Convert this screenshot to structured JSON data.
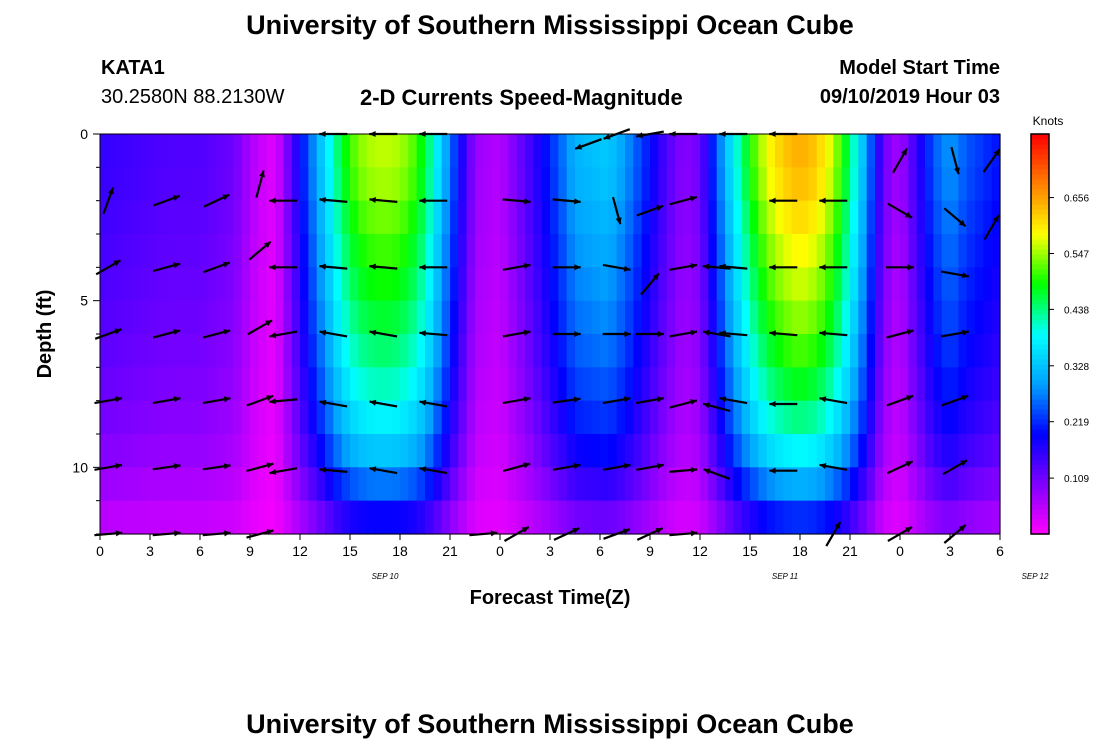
{
  "header": {
    "title": "University of Southern Mississippi Ocean Cube",
    "station": "KATA1",
    "coords": "30.2580N 88.2130W",
    "subtitle": "2-D Currents Speed-Magnitude",
    "model_label": "Model Start Time",
    "model_time": "09/10/2019 Hour 03"
  },
  "footer": {
    "title": "University of Southern Mississippi Ocean Cube"
  },
  "chart_data": {
    "type": "heatmap",
    "xlabel": "Forecast Time(Z)",
    "ylabel": "Depth (ft)",
    "x_ticks": [
      "0",
      "3",
      "6",
      "9",
      "12",
      "15",
      "18",
      "21",
      "0",
      "3",
      "6",
      "9",
      "12",
      "15",
      "18",
      "21",
      "0",
      "3",
      "6"
    ],
    "date_labels": [
      {
        "label": "SEP 10",
        "tick": 6
      },
      {
        "label": "SEP 11",
        "tick": 14
      },
      {
        "label": "SEP 12",
        "tick": 19
      }
    ],
    "x_range_hours": [
      0,
      54
    ],
    "y_ticks": [
      0,
      5,
      10
    ],
    "ylim": [
      0,
      12
    ],
    "colorbar": {
      "unit": "Knots",
      "ticks": [
        "0.109",
        "0.219",
        "0.328",
        "0.438",
        "0.547",
        "0.656"
      ],
      "range": [
        0.0,
        0.78
      ],
      "colors": [
        "#ff00ff",
        "#8000ff",
        "#0000ff",
        "#00a0ff",
        "#00ffff",
        "#00ff00",
        "#ffff00",
        "#ff8000",
        "#ff0000"
      ]
    },
    "speed_profile": {
      "hours": [
        0,
        2,
        4,
        6,
        8,
        9.5,
        10.5,
        11.5,
        12.5,
        13.5,
        14.5,
        15.5,
        16.5,
        17.5,
        18.5,
        19.5,
        20.5,
        21.5,
        22.5,
        24,
        26,
        27.5,
        28.5,
        30.5,
        31.5,
        33,
        34,
        35,
        36,
        37,
        38,
        39,
        40,
        41,
        42,
        43,
        44,
        45,
        46,
        47,
        48,
        49,
        50,
        51,
        52,
        54
      ],
      "values": [
        0.14,
        0.13,
        0.12,
        0.12,
        0.1,
        0.04,
        0.02,
        0.12,
        0.22,
        0.32,
        0.42,
        0.48,
        0.5,
        0.5,
        0.48,
        0.42,
        0.3,
        0.18,
        0.07,
        0.05,
        0.14,
        0.22,
        0.28,
        0.3,
        0.26,
        0.18,
        0.12,
        0.08,
        0.1,
        0.22,
        0.34,
        0.44,
        0.52,
        0.56,
        0.58,
        0.56,
        0.5,
        0.4,
        0.26,
        0.1,
        0.06,
        0.14,
        0.22,
        0.26,
        0.22,
        0.18
      ]
    },
    "depth_factors": {
      "depths": [
        0,
        1,
        2,
        3,
        4,
        5,
        6,
        7,
        8,
        9,
        10,
        11,
        12
      ],
      "values": [
        1.12,
        1.12,
        1.08,
        1.04,
        1.0,
        0.96,
        0.92,
        0.86,
        0.8,
        0.72,
        0.62,
        0.45,
        0.32
      ]
    },
    "vectors": [
      {
        "t": 0.5,
        "depths": [
          2,
          4,
          6,
          8,
          10,
          12
        ],
        "angles": [
          70,
          30,
          20,
          10,
          10,
          5
        ]
      },
      {
        "t": 4,
        "depths": [
          2,
          4,
          6,
          8,
          10,
          12
        ],
        "angles": [
          20,
          15,
          15,
          10,
          8,
          5
        ]
      },
      {
        "t": 7,
        "depths": [
          2,
          4,
          6,
          8,
          10,
          12
        ],
        "angles": [
          25,
          20,
          15,
          10,
          8,
          5
        ]
      },
      {
        "t": 9.6,
        "depths": [
          1.5,
          3.5,
          5.8,
          8,
          10,
          12
        ],
        "angles": [
          75,
          40,
          30,
          20,
          15,
          15
        ]
      },
      {
        "t": 11,
        "depths": [
          2,
          4,
          6,
          8,
          10.1
        ],
        "angles": [
          180,
          180,
          190,
          185,
          190
        ]
      },
      {
        "t": 14,
        "depths": [
          0,
          2,
          4,
          6,
          8.1,
          10.1
        ],
        "angles": [
          180,
          175,
          175,
          170,
          170,
          175
        ]
      },
      {
        "t": 17,
        "depths": [
          0,
          2,
          4,
          6,
          8.1,
          10.1
        ],
        "angles": [
          180,
          175,
          175,
          170,
          170,
          170
        ]
      },
      {
        "t": 20,
        "depths": [
          0,
          2,
          4,
          6,
          8.1,
          10.1
        ],
        "angles": [
          180,
          180,
          180,
          175,
          170,
          170
        ]
      },
      {
        "t": 23,
        "depths": [
          12
        ],
        "angles": [
          5
        ]
      },
      {
        "t": 25,
        "depths": [
          2,
          4,
          6,
          8,
          10,
          12
        ],
        "angles": [
          -5,
          10,
          10,
          10,
          15,
          30
        ]
      },
      {
        "t": 28,
        "depths": [
          2,
          4,
          6,
          8,
          10,
          12
        ],
        "angles": [
          -5,
          0,
          0,
          8,
          10,
          25
        ]
      },
      {
        "t": 29.3,
        "depths": [
          0.3
        ],
        "angles": [
          200
        ]
      },
      {
        "t": 31,
        "depths": [
          0,
          2.3,
          4,
          6,
          8,
          10,
          12
        ],
        "angles": [
          200,
          -75,
          -10,
          0,
          10,
          10,
          20
        ]
      },
      {
        "t": 33,
        "depths": [
          0,
          2.3,
          4.5,
          6,
          8,
          10,
          12
        ],
        "angles": [
          190,
          20,
          50,
          0,
          10,
          10,
          25
        ]
      },
      {
        "t": 35,
        "depths": [
          0,
          2,
          4,
          6,
          8.1,
          10.1,
          12
        ],
        "angles": [
          180,
          15,
          10,
          10,
          15,
          5,
          5
        ]
      },
      {
        "t": 37,
        "depths": [
          4,
          6,
          8.2,
          10.2
        ],
        "angles": [
          175,
          170,
          165,
          160
        ]
      },
      {
        "t": 38,
        "depths": [
          0,
          4,
          6,
          8
        ],
        "angles": [
          180,
          175,
          175,
          170
        ]
      },
      {
        "t": 41,
        "depths": [
          0,
          2,
          4,
          6,
          8.1,
          10.1
        ],
        "angles": [
          180,
          180,
          180,
          175,
          180,
          180
        ]
      },
      {
        "t": 44,
        "depths": [
          2,
          4,
          6,
          8,
          10,
          12
        ],
        "angles": [
          180,
          180,
          175,
          170,
          170,
          60
        ]
      },
      {
        "t": 48,
        "depths": [
          0.8,
          2.3,
          4,
          6,
          8,
          10,
          12
        ],
        "angles": [
          60,
          -30,
          0,
          15,
          20,
          25,
          30
        ]
      },
      {
        "t": 51.3,
        "depths": [
          0.8,
          2.5,
          4.2,
          6,
          8,
          10,
          12
        ],
        "angles": [
          -75,
          -40,
          -10,
          10,
          20,
          30,
          40
        ]
      },
      {
        "t": 53.5,
        "depths": [
          0.8,
          2.8
        ],
        "angles": [
          55,
          60
        ]
      }
    ]
  }
}
